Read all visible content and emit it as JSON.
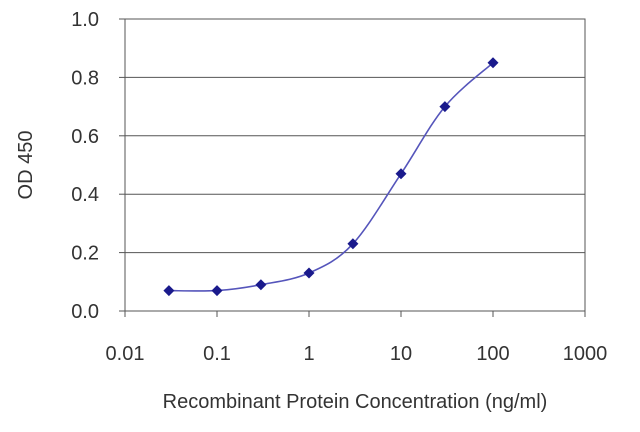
{
  "chart_data": {
    "type": "line",
    "title": "",
    "xlabel": "Recombinant Protein Concentration (ng/ml)",
    "ylabel": "OD 450",
    "x_scale": "log",
    "xlim": [
      0.01,
      1000
    ],
    "ylim": [
      0.0,
      1.0
    ],
    "x_ticks": [
      "0.01",
      "0.1",
      "1",
      "10",
      "100",
      "1000"
    ],
    "y_ticks": [
      "0.0",
      "0.2",
      "0.4",
      "0.6",
      "0.8",
      "1.0"
    ],
    "grid": "horizontal",
    "series": [
      {
        "x": [
          0.03,
          0.1,
          0.3,
          1,
          3,
          10,
          30,
          100
        ],
        "y": [
          0.07,
          0.07,
          0.09,
          0.13,
          0.23,
          0.47,
          0.7,
          0.85
        ],
        "color": "#1a1a8c",
        "line_color": "#5555bb",
        "marker": "diamond"
      }
    ]
  }
}
